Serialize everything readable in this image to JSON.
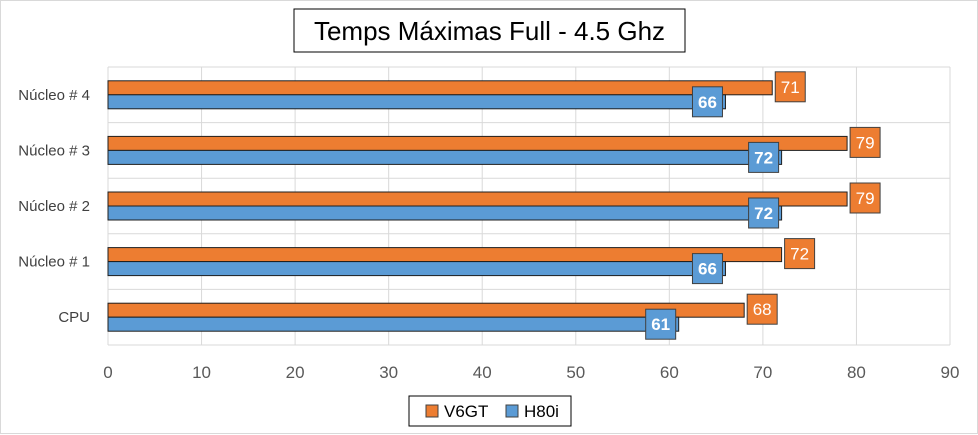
{
  "chart_data": {
    "type": "bar",
    "orientation": "horizontal",
    "title": "Temps Máximas Full - 4.5 Ghz",
    "categories": [
      "CPU",
      "Núcleo # 1",
      "Núcleo # 2",
      "Núcleo # 3",
      "Núcleo # 4"
    ],
    "series": [
      {
        "name": "V6GT",
        "color": "#ED7D31",
        "values": [
          68,
          72,
          79,
          79,
          71
        ]
      },
      {
        "name": "H80i",
        "color": "#5B9BD5",
        "values": [
          61,
          66,
          72,
          72,
          66
        ]
      }
    ],
    "xlim": [
      0,
      90
    ],
    "xticks": [
      "0",
      "10",
      "20",
      "30",
      "40",
      "50",
      "60",
      "70",
      "80",
      "90"
    ],
    "grid": true,
    "legend_position": "bottom",
    "data_labels": true
  }
}
